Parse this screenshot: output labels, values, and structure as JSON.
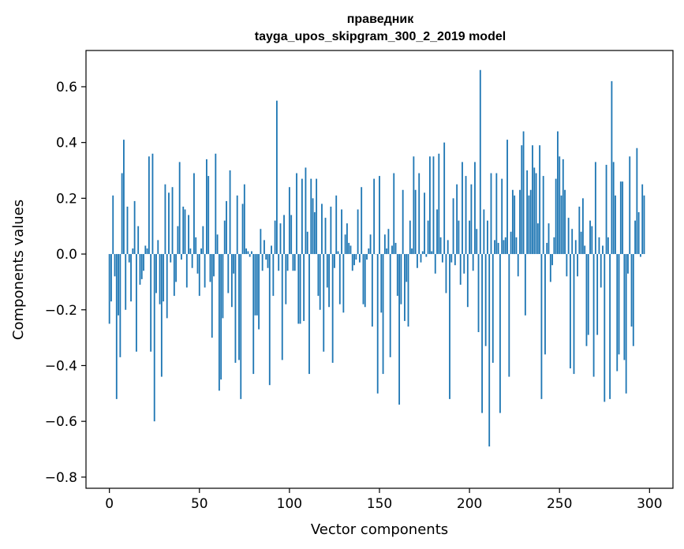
{
  "chart_data": {
    "type": "bar",
    "title": "праведник",
    "subtitle": "tayga_upos_skipgram_300_2_2019 model",
    "xlabel": "Vector components",
    "ylabel": "Components values",
    "xlim": [
      -13,
      313
    ],
    "ylim": [
      -0.84,
      0.73
    ],
    "x_ticks": [
      0,
      50,
      100,
      150,
      200,
      250,
      300
    ],
    "x_tick_labels": [
      "0",
      "50",
      "100",
      "150",
      "200",
      "250",
      "300"
    ],
    "y_ticks": [
      -0.8,
      -0.6,
      -0.4,
      -0.2,
      0.0,
      0.2,
      0.4,
      0.6
    ],
    "y_tick_labels": [
      "−0.8",
      "−0.6",
      "−0.4",
      "−0.2",
      "0.0",
      "0.2",
      "0.4",
      "0.6"
    ],
    "grid": false,
    "bar_color": "#1f77b4",
    "values": [
      -0.25,
      -0.17,
      0.21,
      -0.08,
      -0.52,
      -0.22,
      -0.37,
      0.29,
      0.41,
      -0.2,
      0.17,
      -0.03,
      -0.17,
      0.02,
      0.19,
      -0.35,
      0.1,
      -0.11,
      -0.09,
      -0.06,
      0.03,
      0.02,
      0.35,
      -0.35,
      0.36,
      -0.6,
      -0.14,
      0.05,
      -0.18,
      -0.44,
      -0.17,
      0.25,
      -0.23,
      0.22,
      -0.03,
      0.24,
      -0.15,
      -0.1,
      0.1,
      0.33,
      -0.02,
      0.17,
      0.16,
      -0.12,
      0.14,
      0.02,
      -0.05,
      0.29,
      0.06,
      -0.07,
      -0.15,
      0.02,
      0.1,
      -0.12,
      0.34,
      0.28,
      -0.1,
      -0.3,
      -0.08,
      0.36,
      0.07,
      -0.49,
      -0.45,
      -0.23,
      0.12,
      0.19,
      -0.14,
      0.3,
      -0.19,
      -0.07,
      -0.39,
      0.21,
      -0.38,
      -0.52,
      0.18,
      0.25,
      0.02,
      0.01,
      -0.01,
      0.01,
      -0.43,
      -0.22,
      -0.22,
      -0.27,
      0.09,
      -0.06,
      0.05,
      -0.02,
      -0.05,
      -0.47,
      0.03,
      -0.15,
      0.12,
      0.55,
      -0.06,
      0.11,
      -0.38,
      0.14,
      -0.18,
      -0.06,
      0.24,
      0.14,
      -0.06,
      -0.06,
      0.29,
      -0.25,
      -0.25,
      0.27,
      -0.24,
      0.31,
      0.08,
      -0.43,
      0.27,
      0.2,
      0.15,
      0.27,
      -0.15,
      -0.2,
      0.18,
      -0.35,
      0.13,
      -0.12,
      -0.19,
      0.17,
      -0.39,
      -0.05,
      0.21,
      0.01,
      -0.18,
      0.16,
      -0.21,
      0.07,
      0.11,
      0.04,
      0.03,
      -0.06,
      -0.04,
      -0.02,
      0.16,
      -0.03,
      0.24,
      -0.18,
      -0.19,
      -0.02,
      0.02,
      0.07,
      -0.26,
      0.27,
      0.0,
      -0.5,
      0.28,
      -0.21,
      -0.43,
      0.07,
      0.02,
      0.09,
      -0.37,
      0.03,
      0.29,
      0.04,
      -0.15,
      -0.54,
      -0.18,
      0.23,
      -0.24,
      -0.1,
      -0.26,
      0.12,
      0.02,
      0.35,
      0.23,
      -0.05,
      0.29,
      -0.03,
      0.01,
      0.22,
      -0.01,
      0.12,
      0.35,
      0.01,
      0.35,
      -0.07,
      0.16,
      0.36,
      0.06,
      -0.03,
      0.4,
      -0.14,
      0.05,
      -0.52,
      -0.03,
      0.2,
      -0.04,
      0.25,
      0.12,
      -0.11,
      0.33,
      -0.07,
      0.28,
      -0.19,
      0.12,
      0.25,
      -0.06,
      0.33,
      0.09,
      -0.28,
      0.66,
      -0.57,
      0.16,
      -0.33,
      0.12,
      -0.69,
      0.29,
      -0.39,
      0.05,
      0.29,
      0.04,
      -0.57,
      0.27,
      0.05,
      0.06,
      0.41,
      -0.44,
      0.08,
      0.23,
      0.21,
      0.06,
      -0.08,
      0.23,
      0.39,
      0.44,
      -0.22,
      0.3,
      0.21,
      0.23,
      0.39,
      0.31,
      0.29,
      0.11,
      0.39,
      -0.52,
      0.28,
      -0.36,
      0.04,
      0.11,
      -0.1,
      -0.04,
      0.06,
      0.27,
      0.44,
      0.35,
      0.21,
      0.34,
      0.23,
      -0.08,
      0.13,
      -0.41,
      0.09,
      -0.43,
      0.05,
      -0.08,
      0.17,
      0.08,
      0.2,
      0.03,
      -0.33,
      -0.29,
      0.12,
      0.1,
      -0.44,
      0.33,
      -0.29,
      0.06,
      -0.12,
      0.03,
      -0.53,
      0.32,
      0.06,
      -0.52,
      0.62,
      0.33,
      0.21,
      -0.42,
      -0.36,
      0.26,
      0.26,
      -0.38,
      -0.5,
      -0.07,
      0.35,
      -0.26,
      -0.33,
      0.12,
      0.38,
      0.15,
      -0.01,
      0.25,
      0.21
    ]
  }
}
